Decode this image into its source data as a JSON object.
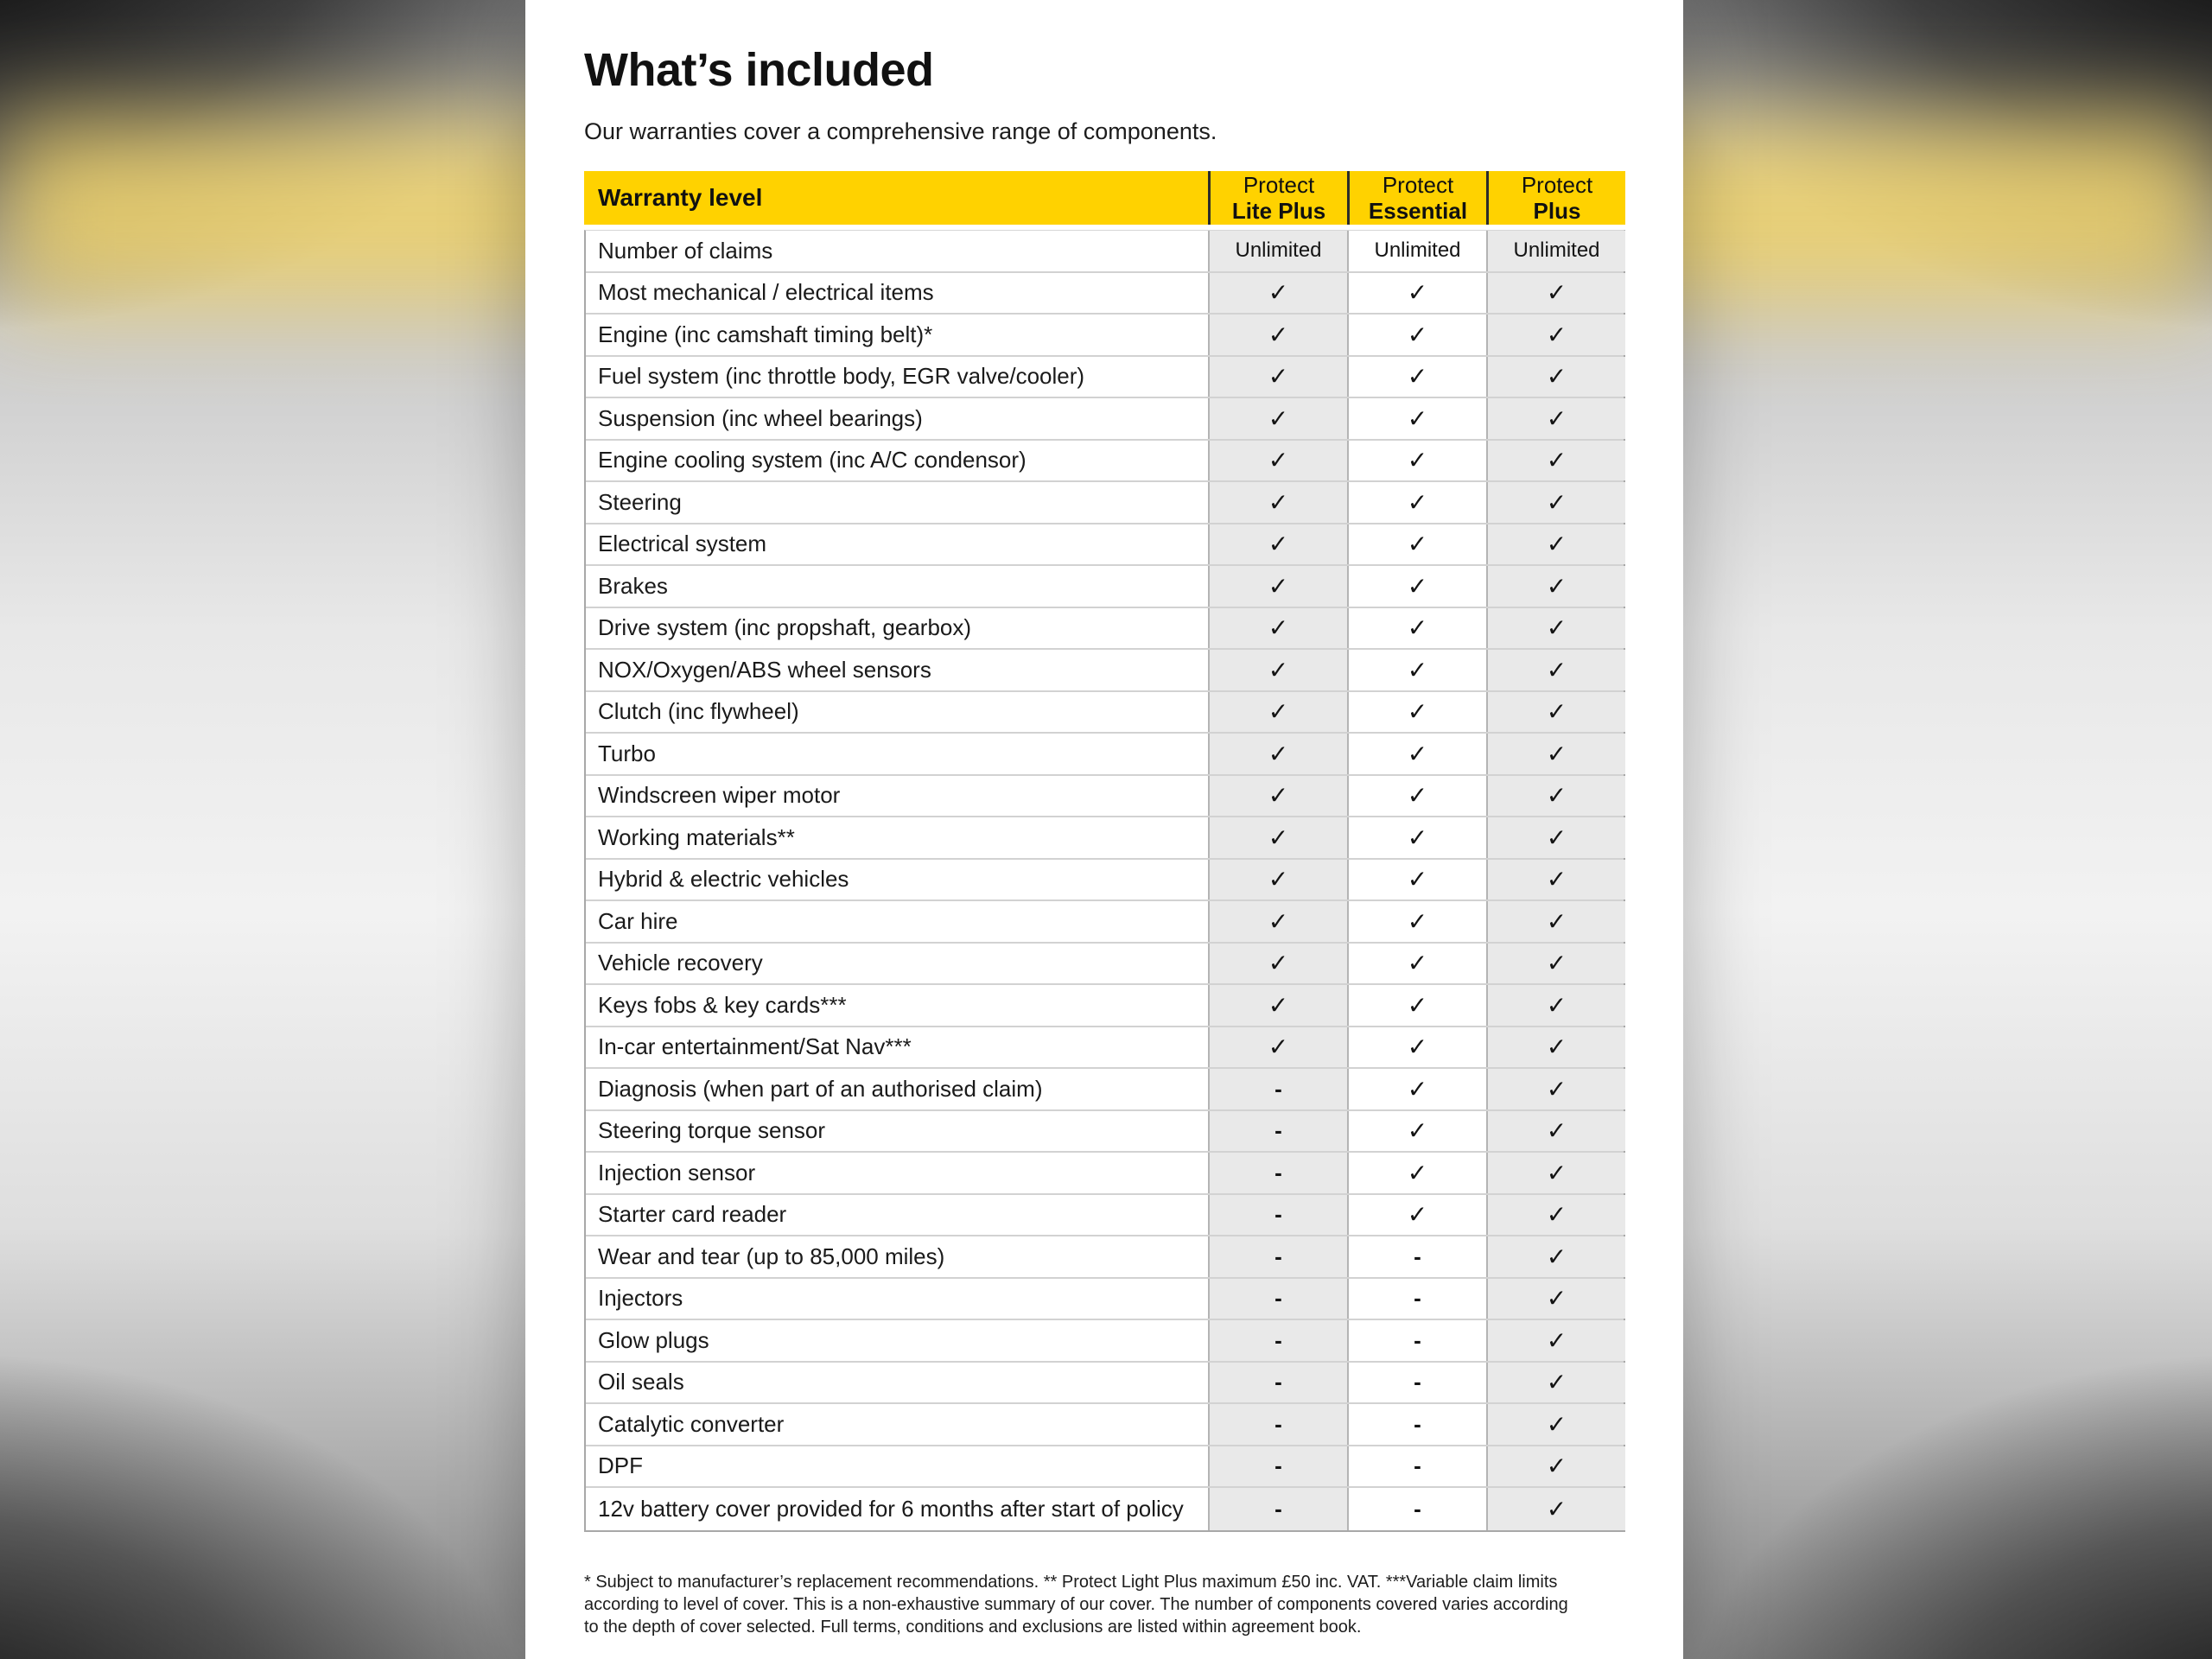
{
  "page": {
    "title": "What’s included",
    "subtitle": "Our warranties cover a comprehensive range of components."
  },
  "colors": {
    "brand_yellow": "#ffd200",
    "cell_gray": "#e9e9e9"
  },
  "icons": {
    "check": "✓",
    "dash": "-"
  },
  "table": {
    "header": {
      "label": "Warranty level",
      "columns": [
        {
          "line1": "Protect",
          "line2": "Lite Plus"
        },
        {
          "line1": "Protect",
          "line2": "Essential"
        },
        {
          "line1": "Protect",
          "line2": "Plus"
        }
      ]
    },
    "rows": [
      {
        "label": "Number of claims",
        "values": [
          "Unlimited",
          "Unlimited",
          "Unlimited"
        ]
      },
      {
        "label": "Most mechanical / electrical items",
        "values": [
          "check",
          "check",
          "check"
        ]
      },
      {
        "label": "Engine (inc camshaft timing belt)*",
        "values": [
          "check",
          "check",
          "check"
        ]
      },
      {
        "label": "Fuel system (inc throttle body, EGR valve/cooler)",
        "values": [
          "check",
          "check",
          "check"
        ]
      },
      {
        "label": "Suspension (inc wheel bearings)",
        "values": [
          "check",
          "check",
          "check"
        ]
      },
      {
        "label": "Engine cooling system (inc A/C condensor)",
        "values": [
          "check",
          "check",
          "check"
        ]
      },
      {
        "label": "Steering",
        "values": [
          "check",
          "check",
          "check"
        ]
      },
      {
        "label": "Electrical system",
        "values": [
          "check",
          "check",
          "check"
        ]
      },
      {
        "label": "Brakes",
        "values": [
          "check",
          "check",
          "check"
        ]
      },
      {
        "label": "Drive system (inc propshaft, gearbox)",
        "values": [
          "check",
          "check",
          "check"
        ]
      },
      {
        "label": "NOX/Oxygen/ABS wheel sensors",
        "values": [
          "check",
          "check",
          "check"
        ]
      },
      {
        "label": "Clutch (inc flywheel)",
        "values": [
          "check",
          "check",
          "check"
        ]
      },
      {
        "label": "Turbo",
        "values": [
          "check",
          "check",
          "check"
        ]
      },
      {
        "label": "Windscreen wiper motor",
        "values": [
          "check",
          "check",
          "check"
        ]
      },
      {
        "label": "Working materials**",
        "values": [
          "check",
          "check",
          "check"
        ]
      },
      {
        "label": "Hybrid & electric vehicles",
        "values": [
          "check",
          "check",
          "check"
        ]
      },
      {
        "label": "Car hire",
        "values": [
          "check",
          "check",
          "check"
        ]
      },
      {
        "label": "Vehicle recovery",
        "values": [
          "check",
          "check",
          "check"
        ]
      },
      {
        "label": "Keys fobs & key cards***",
        "values": [
          "check",
          "check",
          "check"
        ]
      },
      {
        "label": "In-car entertainment/Sat Nav***",
        "values": [
          "check",
          "check",
          "check"
        ]
      },
      {
        "label": "Diagnosis (when part of an authorised claim)",
        "values": [
          "dash",
          "check",
          "check"
        ]
      },
      {
        "label": "Steering torque sensor",
        "values": [
          "dash",
          "check",
          "check"
        ]
      },
      {
        "label": "Injection sensor",
        "values": [
          "dash",
          "check",
          "check"
        ]
      },
      {
        "label": "Starter card reader",
        "values": [
          "dash",
          "check",
          "check"
        ]
      },
      {
        "label": "Wear and tear (up to 85,000 miles)",
        "values": [
          "dash",
          "dash",
          "check"
        ]
      },
      {
        "label": "Injectors",
        "values": [
          "dash",
          "dash",
          "check"
        ]
      },
      {
        "label": "Glow plugs",
        "values": [
          "dash",
          "dash",
          "check"
        ]
      },
      {
        "label": "Oil seals",
        "values": [
          "dash",
          "dash",
          "check"
        ]
      },
      {
        "label": "Catalytic converter",
        "values": [
          "dash",
          "dash",
          "check"
        ]
      },
      {
        "label": "DPF",
        "values": [
          "dash",
          "dash",
          "check"
        ]
      },
      {
        "label": "12v battery cover provided for 6 months after start of policy",
        "values": [
          "dash",
          "dash",
          "check"
        ]
      }
    ]
  },
  "footnote": "* Subject to manufacturer’s replacement recommendations. ** Protect Light Plus maximum £50 inc. VAT. ***Variable claim limits according to level of cover. This is a non-exhaustive summary of our cover. The number of components covered varies according to the depth of cover selected. Full terms, conditions and exclusions are listed within agreement book."
}
